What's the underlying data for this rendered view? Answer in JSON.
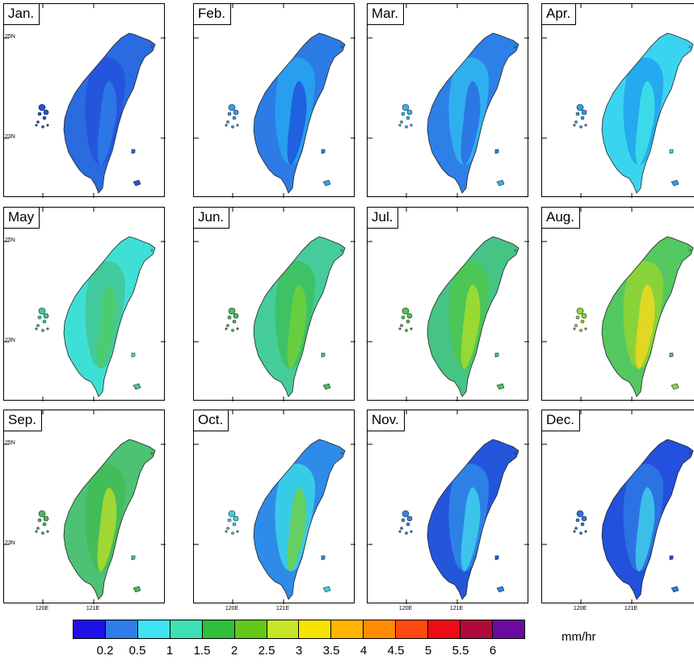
{
  "figure": {
    "panels": [
      {
        "month": "Jan.",
        "colors": [
          "#2a6be0",
          "#2353dc",
          "#2f7de6"
        ]
      },
      {
        "month": "Feb.",
        "colors": [
          "#2d7be5",
          "#27a3ee",
          "#1f56dc"
        ]
      },
      {
        "month": "Mar.",
        "colors": [
          "#2d80e7",
          "#31b4f0",
          "#2a6ee2"
        ]
      },
      {
        "month": "Apr.",
        "colors": [
          "#3bd4f0",
          "#24a4ee",
          "#3fe3e6"
        ]
      },
      {
        "month": "May",
        "colors": [
          "#3ee0d6",
          "#41c896",
          "#4fcd6a"
        ]
      },
      {
        "month": "Jun.",
        "colors": [
          "#45cc9a",
          "#3ec060",
          "#6fd03a"
        ]
      },
      {
        "month": "Jul.",
        "colors": [
          "#45c486",
          "#4cc650",
          "#a6dc2e"
        ]
      },
      {
        "month": "Aug.",
        "colors": [
          "#54c860",
          "#8ed436",
          "#f0d820"
        ]
      },
      {
        "month": "Sep.",
        "colors": [
          "#4dc274",
          "#43bb58",
          "#b0dc2c"
        ]
      },
      {
        "month": "Oct.",
        "colors": [
          "#2f8be8",
          "#3ad2e8",
          "#6cd04a"
        ]
      },
      {
        "month": "Nov.",
        "colors": [
          "#2456dc",
          "#2f86e6",
          "#3fd0ec"
        ]
      },
      {
        "month": "Dec.",
        "colors": [
          "#2350dc",
          "#2c76e4",
          "#3fcbea"
        ]
      }
    ],
    "lat_labels": [
      "25N",
      "23N"
    ],
    "lon_labels": [
      "120E",
      "121E"
    ],
    "colorbar": {
      "colors": [
        "#1f10e8",
        "#2f7de6",
        "#3fe3f2",
        "#3ee0b4",
        "#2fbf3a",
        "#64c71a",
        "#c8e628",
        "#f5e400",
        "#ffb400",
        "#ff8c00",
        "#ff4a10",
        "#ee0b16",
        "#b00a3c",
        "#6a0aa0"
      ],
      "ticks": [
        "0.2",
        "0.5",
        "1",
        "1.5",
        "2",
        "2.5",
        "3",
        "3.5",
        "4",
        "4.5",
        "5",
        "5.5",
        "6"
      ]
    },
    "units": "mm/hr"
  }
}
